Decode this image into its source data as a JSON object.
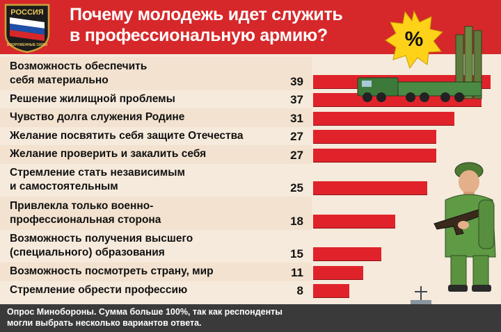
{
  "header": {
    "title_lines": [
      "Почему молодежь идет служить",
      "в профессиональную армию?"
    ],
    "emblem_top": "РОССИЯ",
    "emblem_bottom": "ВООРУЖЕННЫЕ СИЛЫ",
    "badge_symbol": "%"
  },
  "colors": {
    "accent": "#d6282b",
    "bar": "#e0232b",
    "row_alt": "#f2e2cf",
    "footer": "#3a3a3a"
  },
  "chart_data": {
    "type": "bar",
    "orientation": "horizontal",
    "categories": [
      [
        "Возможность обеспечить",
        "себя материально"
      ],
      [
        "Решение жилищной проблемы"
      ],
      [
        "Чувство долга служения Родине"
      ],
      [
        "Желание посвятить себя защите Отечества"
      ],
      [
        "Желание проверить и закалить себя"
      ],
      [
        "Стремление стать независимым",
        "и самостоятельным"
      ],
      [
        "Привлекла только военно-",
        "профессиональная сторона"
      ],
      [
        "Возможность получения высшего",
        "(специального) образования"
      ],
      [
        "Возможность посмотреть страну, мир"
      ],
      [
        "Стремление обрести профессию"
      ]
    ],
    "values": [
      39,
      37,
      31,
      27,
      27,
      25,
      18,
      15,
      11,
      8
    ],
    "unit": "%",
    "xlim": [
      0,
      40
    ]
  },
  "footnote": [
    "Опрос Минобороны. Сумма больше 100%, так как респонденты",
    "могли выбрать несколько вариантов ответа."
  ],
  "illustrations": [
    "missile-launcher-truck",
    "soldier-with-rifle",
    "warship"
  ]
}
